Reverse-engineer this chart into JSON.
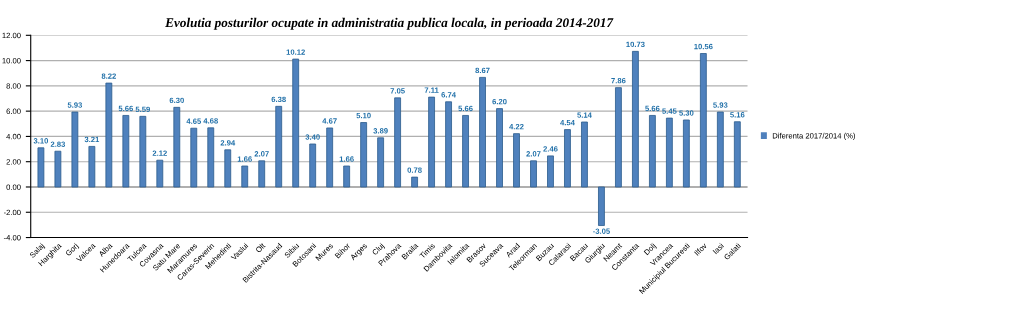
{
  "chart_data": {
    "type": "bar",
    "title": "Evolutia posturilor ocupate in administratia publica locala, in perioada 2014-2017",
    "categories": [
      "Salaj",
      "Harghita",
      "Gorj",
      "Valcea",
      "Alba",
      "Hunedoara",
      "Tulcea",
      "Covasna",
      "Satu Mare",
      "Maramures",
      "Caras-Severin",
      "Mehedinti",
      "Vaslui",
      "Olt",
      "Bistrita-Nasaud",
      "Sibiu",
      "Botosani",
      "Mures",
      "Bihor",
      "Arges",
      "Cluj",
      "Prahova",
      "Braila",
      "Timis",
      "Dambovita",
      "Ialomita",
      "Brasov",
      "Suceava",
      "Arad",
      "Teleorman",
      "Buzau",
      "Calarasi",
      "Bacau",
      "Giurgiu",
      "Neamt",
      "Constanta",
      "Dolj",
      "Vrancea",
      "Municipiul Bucuresti",
      "Ilfov",
      "Iasi",
      "Galati"
    ],
    "series": [
      {
        "name": "Diferenta 2017/2014 (%)",
        "color": "#4f81bd",
        "values": [
          3.1,
          2.83,
          5.93,
          3.21,
          8.22,
          5.66,
          5.59,
          2.12,
          6.3,
          4.65,
          4.68,
          2.94,
          1.66,
          2.07,
          6.38,
          10.12,
          3.4,
          4.67,
          1.66,
          5.1,
          3.89,
          7.05,
          0.78,
          7.11,
          6.74,
          5.66,
          8.67,
          6.2,
          4.22,
          2.07,
          2.46,
          4.54,
          5.14,
          -3.05,
          7.86,
          10.73,
          5.66,
          5.45,
          5.3,
          10.56,
          5.93,
          5.16
        ],
        "value_labels": [
          "3.10",
          "2.83",
          "5.93",
          "3.21",
          "8.22",
          "5.66",
          "5.59",
          "2.12",
          "6.30",
          "4.65",
          "4.68",
          "2.94",
          "1.66",
          "2.07",
          "6.38",
          "10.12",
          "3.40",
          "4.67",
          "1.66",
          "5.10",
          "3.89",
          "7.05",
          "0.78",
          "7.11",
          "6.74",
          "5.66",
          "8.67",
          "6.20",
          "4.22",
          "2.07",
          "2.46",
          "4.54",
          "5.14",
          "-3.05",
          "7.86",
          "10.73",
          "5.66",
          "5.45",
          "5.30",
          "10.56",
          "5.93",
          "5.16"
        ]
      }
    ],
    "ylim": [
      -4,
      12
    ],
    "yticks": [
      {
        "value": -4,
        "label": "-4.00"
      },
      {
        "value": -2,
        "label": "-2.00"
      },
      {
        "value": 0,
        "label": "0.00"
      },
      {
        "value": 2,
        "label": "2.00"
      },
      {
        "value": 4,
        "label": "4.00"
      },
      {
        "value": 6,
        "label": "6.00"
      },
      {
        "value": 8,
        "label": "8.00"
      },
      {
        "value": 10,
        "label": "10.00"
      },
      {
        "value": 12,
        "label": "12.00"
      }
    ],
    "grid": "y",
    "legend": "right"
  }
}
